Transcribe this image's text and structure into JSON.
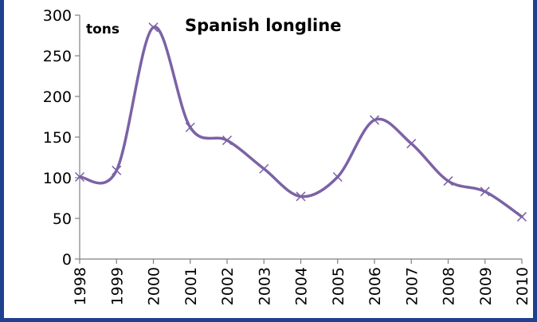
{
  "chart_data": {
    "type": "line",
    "title": "Spanish longline",
    "unit_label": "tons",
    "xlabel": "",
    "ylabel": "",
    "x": [
      "1998",
      "1999",
      "2000",
      "2001",
      "2002",
      "2003",
      "2004",
      "2005",
      "2006",
      "2007",
      "2008",
      "2009",
      "2010"
    ],
    "series": [
      {
        "values": [
          101,
          109,
          285,
          162,
          146,
          111,
          77,
          101,
          171,
          142,
          96,
          83,
          52
        ]
      }
    ],
    "ylim": [
      0,
      300
    ],
    "yticks": [
      0,
      50,
      100,
      150,
      200,
      250,
      300
    ],
    "grid": false,
    "legend": "none",
    "line_color": "#7b62a6",
    "marker": "x"
  }
}
